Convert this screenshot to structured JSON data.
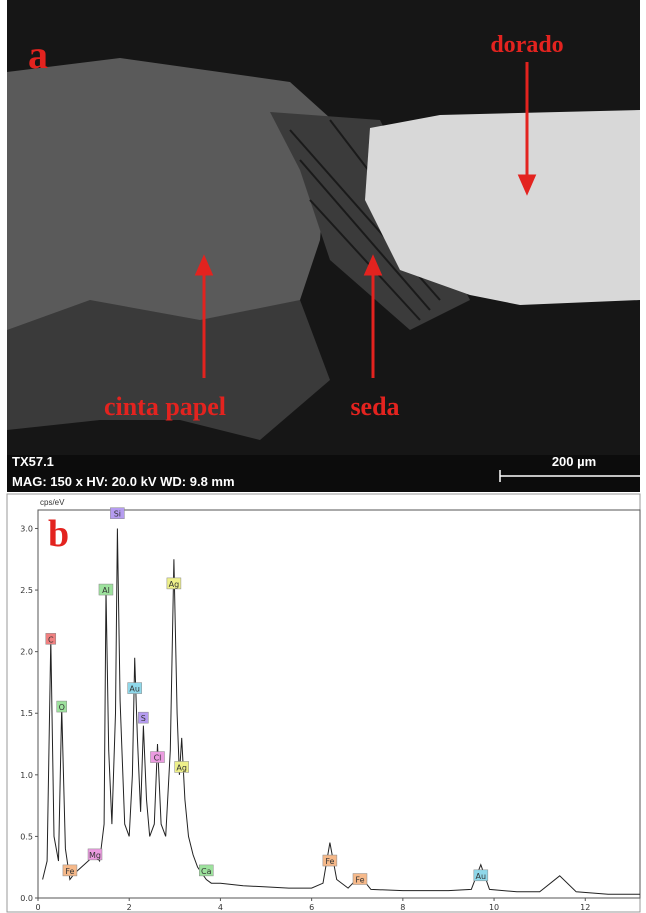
{
  "image": {
    "panel_label": "a",
    "annotations": [
      "dorado",
      "cinta papel",
      "seda"
    ],
    "sample": "TX57.1",
    "params": "MAG: 150 x  HV: 20.0 kV  WD: 9.8 mm",
    "scale_bar": "200 µm"
  },
  "chart_data": {
    "type": "line",
    "panel_label": "b",
    "ylabel": "cps/eV",
    "x": [
      0.1,
      0.2,
      0.28,
      0.35,
      0.45,
      0.52,
      0.6,
      0.7,
      0.8,
      0.95,
      1.1,
      1.25,
      1.35,
      1.45,
      1.49,
      1.55,
      1.62,
      1.7,
      1.74,
      1.8,
      1.9,
      2.0,
      2.07,
      2.12,
      2.18,
      2.25,
      2.31,
      2.38,
      2.45,
      2.55,
      2.62,
      2.7,
      2.8,
      2.9,
      2.98,
      3.05,
      3.1,
      3.15,
      3.22,
      3.3,
      3.4,
      3.5,
      3.69,
      3.8,
      4.0,
      4.5,
      5.0,
      5.5,
      6.0,
      6.25,
      6.4,
      6.55,
      6.8,
      7.06,
      7.3,
      8.0,
      8.5,
      9.0,
      9.5,
      9.71,
      9.9,
      10.5,
      11.0,
      11.44,
      11.8,
      12.5,
      13.2
    ],
    "series": [
      {
        "color": "#222222",
        "values": [
          0.15,
          0.3,
          2.1,
          0.5,
          0.3,
          1.55,
          0.4,
          0.15,
          0.2,
          0.25,
          0.3,
          0.35,
          0.3,
          0.6,
          2.5,
          1.2,
          0.6,
          1.5,
          3.0,
          1.6,
          0.6,
          0.5,
          1.0,
          1.95,
          1.3,
          0.7,
          1.4,
          0.8,
          0.5,
          0.6,
          1.25,
          0.6,
          0.5,
          1.2,
          2.75,
          1.5,
          1.0,
          1.3,
          0.8,
          0.5,
          0.35,
          0.25,
          0.15,
          0.12,
          0.12,
          0.1,
          0.09,
          0.08,
          0.08,
          0.12,
          0.45,
          0.15,
          0.08,
          0.18,
          0.07,
          0.06,
          0.06,
          0.06,
          0.07,
          0.27,
          0.07,
          0.05,
          0.05,
          0.18,
          0.05,
          0.03,
          0.03
        ]
      }
    ],
    "peak_labels": [
      {
        "label": "C",
        "x": 0.28,
        "y": 2.1,
        "color": "#f08080"
      },
      {
        "label": "O",
        "x": 0.52,
        "y": 1.55,
        "color": "#9de29d"
      },
      {
        "label": "Fe",
        "x": 0.7,
        "y": 0.22,
        "color": "#f6b98a"
      },
      {
        "label": "Mg",
        "x": 1.25,
        "y": 0.35,
        "color": "#eb9be0"
      },
      {
        "label": "Al",
        "x": 1.49,
        "y": 2.5,
        "color": "#9de29d"
      },
      {
        "label": "Si",
        "x": 1.74,
        "y": 3.12,
        "color": "#b59cf0"
      },
      {
        "label": "Au",
        "x": 2.12,
        "y": 1.7,
        "color": "#8fd8ea"
      },
      {
        "label": "S",
        "x": 2.31,
        "y": 1.46,
        "color": "#b59cf0"
      },
      {
        "label": "Cl",
        "x": 2.62,
        "y": 1.14,
        "color": "#eb9be0"
      },
      {
        "label": "Ag",
        "x": 2.98,
        "y": 2.55,
        "color": "#eef08a"
      },
      {
        "label": "Ag",
        "x": 3.15,
        "y": 1.06,
        "color": "#eef08a"
      },
      {
        "label": "Ca",
        "x": 3.69,
        "y": 0.22,
        "color": "#9de29d"
      },
      {
        "label": "Fe",
        "x": 6.4,
        "y": 0.3,
        "color": "#f6b98a"
      },
      {
        "label": "Fe",
        "x": 7.06,
        "y": 0.15,
        "color": "#f6b98a"
      },
      {
        "label": "Au",
        "x": 9.71,
        "y": 0.18,
        "color": "#8fd8ea"
      }
    ],
    "xlim": [
      0,
      13.2
    ],
    "ylim": [
      0,
      3.15
    ],
    "xticks": [
      0,
      2,
      4,
      6,
      8,
      10,
      12
    ],
    "yticks": [
      {
        "value": 0,
        "label": "0.0"
      },
      {
        "value": 0.5,
        "label": "0.5"
      },
      {
        "value": 1,
        "label": "1.0"
      },
      {
        "value": 1.5,
        "label": "1.5"
      },
      {
        "value": 2,
        "label": "2.0"
      },
      {
        "value": 2.5,
        "label": "2.5"
      },
      {
        "value": 3,
        "label": "3.0"
      }
    ]
  }
}
